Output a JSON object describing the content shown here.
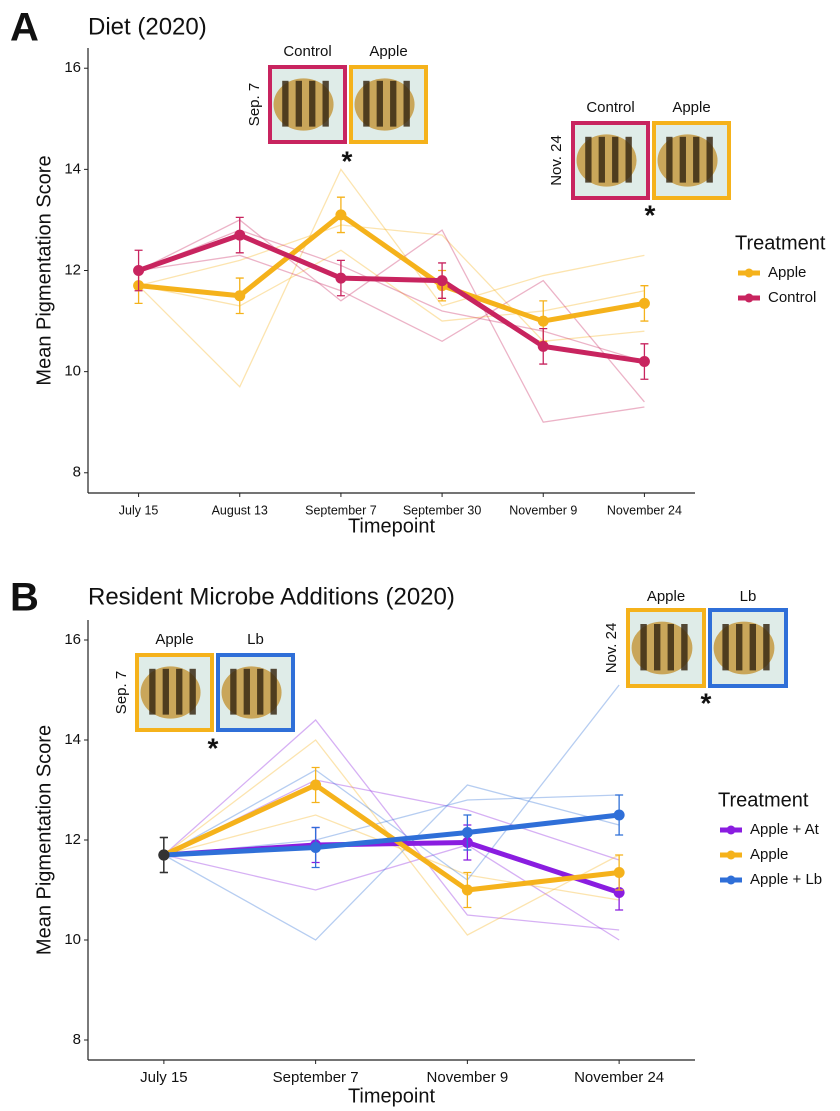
{
  "chart_data": [
    {
      "type": "line",
      "panel_label": "A",
      "title": "Diet (2020)",
      "x_label": "Timepoint",
      "y_label": "Mean Pigmentation Score",
      "categories": [
        "July 15",
        "August 13",
        "September 7",
        "September 30",
        "November 9",
        "November 24"
      ],
      "ylim": [
        7.6,
        16.4
      ],
      "yticks": [
        8,
        10,
        12,
        14,
        16
      ],
      "legend_title": "Treatment",
      "legend_position": "right",
      "series": [
        {
          "name": "Apple",
          "color": "#f5b21b",
          "values": [
            11.7,
            11.5,
            13.1,
            11.7,
            11.0,
            11.35
          ],
          "errors": [
            0.35,
            0.35,
            0.35,
            0.3,
            0.4,
            0.35
          ]
        },
        {
          "name": "Control",
          "color": "#c8245f",
          "values": [
            12.0,
            12.7,
            11.85,
            11.8,
            10.5,
            10.2
          ],
          "errors": [
            0.4,
            0.35,
            0.35,
            0.35,
            0.35,
            0.35
          ]
        }
      ],
      "replicates": [
        {
          "series": "Apple",
          "values": [
            11.7,
            9.7,
            14.0,
            11.3,
            11.9,
            12.3
          ]
        },
        {
          "series": "Apple",
          "values": [
            11.7,
            12.2,
            12.9,
            12.7,
            10.6,
            10.8
          ]
        },
        {
          "series": "Apple",
          "values": [
            11.7,
            11.3,
            12.4,
            11.0,
            11.2,
            11.6
          ]
        },
        {
          "series": "Control",
          "values": [
            12.0,
            13.0,
            11.4,
            12.8,
            9.0,
            9.3
          ]
        },
        {
          "series": "Control",
          "values": [
            12.0,
            12.8,
            12.1,
            11.2,
            10.8,
            10.2
          ]
        },
        {
          "series": "Control",
          "values": [
            12.0,
            12.3,
            11.6,
            10.6,
            11.8,
            9.4
          ]
        }
      ],
      "insets": [
        {
          "date": "Sep. 7",
          "labels": [
            "Control",
            "Apple"
          ],
          "borders": [
            "#c8245f",
            "#f5b21b"
          ],
          "mark": "*"
        },
        {
          "date": "Nov. 24",
          "labels": [
            "Control",
            "Apple"
          ],
          "borders": [
            "#c8245f",
            "#f5b21b"
          ],
          "mark": "*"
        }
      ]
    },
    {
      "type": "line",
      "panel_label": "B",
      "title": "Resident Microbe Additions (2020)",
      "x_label": "Timepoint",
      "y_label": "Mean Pigmentation Score",
      "categories": [
        "July 15",
        "September 7",
        "November 9",
        "November 24"
      ],
      "ylim": [
        7.6,
        16.4
      ],
      "yticks": [
        8,
        10,
        12,
        14,
        16
      ],
      "legend_title": "Treatment",
      "legend_position": "right",
      "first_point_color": "#333333",
      "series": [
        {
          "name": "Apple + At",
          "color": "#8a1de0",
          "values": [
            11.7,
            11.9,
            11.95,
            10.95
          ],
          "errors": [
            0.35,
            0.35,
            0.35,
            0.35
          ]
        },
        {
          "name": "Apple",
          "color": "#f5b21b",
          "values": [
            11.7,
            13.1,
            11.0,
            11.35
          ],
          "errors": [
            0.35,
            0.35,
            0.35,
            0.35
          ]
        },
        {
          "name": "Apple + Lb",
          "color": "#2f6fd8",
          "values": [
            11.7,
            11.85,
            12.15,
            12.5
          ],
          "errors": [
            0.35,
            0.4,
            0.35,
            0.4
          ]
        }
      ],
      "replicates": [
        {
          "series": "Apple + At",
          "values": [
            11.7,
            14.4,
            10.5,
            10.2
          ]
        },
        {
          "series": "Apple + At",
          "values": [
            11.7,
            11.0,
            11.9,
            10.0
          ]
        },
        {
          "series": "Apple + At",
          "values": [
            11.7,
            13.2,
            12.6,
            11.6
          ]
        },
        {
          "series": "Apple",
          "values": [
            11.7,
            14.0,
            10.1,
            11.7
          ]
        },
        {
          "series": "Apple",
          "values": [
            11.7,
            12.5,
            11.3,
            10.8
          ]
        },
        {
          "series": "Apple + Lb",
          "values": [
            11.7,
            10.0,
            13.1,
            12.3
          ]
        },
        {
          "series": "Apple + Lb",
          "values": [
            11.7,
            13.4,
            11.2,
            15.1
          ]
        },
        {
          "series": "Apple + Lb",
          "values": [
            11.7,
            12.0,
            12.8,
            12.9
          ]
        }
      ],
      "insets": [
        {
          "date": "Sep. 7",
          "labels": [
            "Apple",
            "Lb"
          ],
          "borders": [
            "#f5b21b",
            "#2f6fd8"
          ],
          "mark": "*"
        },
        {
          "date": "Nov. 24",
          "labels": [
            "Apple",
            "Lb"
          ],
          "borders": [
            "#f5b21b",
            "#2f6fd8"
          ],
          "mark": "*"
        }
      ]
    }
  ]
}
